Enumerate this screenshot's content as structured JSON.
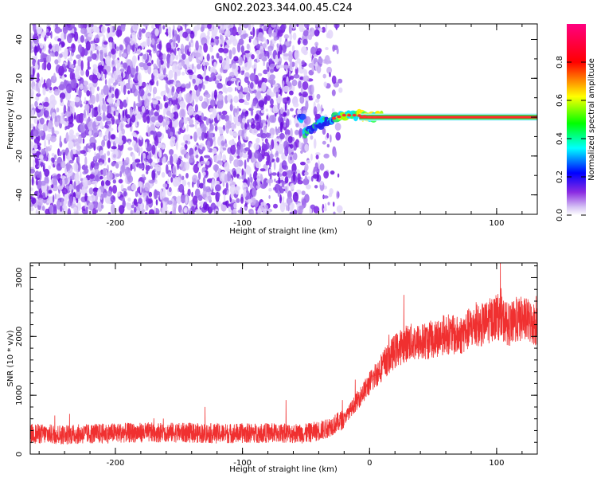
{
  "title": "GN02.2023.344.00.45.C24",
  "chart_data": [
    {
      "type": "heatmap",
      "xlabel": "Height of straight line (km)",
      "ylabel": "Frequency (Hz)",
      "xlim": [
        -267,
        132
      ],
      "ylim": [
        -50,
        48
      ],
      "xticks": [
        -200,
        -100,
        0,
        100
      ],
      "yticks": [
        -40,
        -20,
        0,
        20,
        40
      ],
      "grid": false,
      "description_values": {
        "noise_region_x": [
          -267,
          -30
        ],
        "signal_track": [
          {
            "x": -52,
            "y": -9
          },
          {
            "x": -45,
            "y": -6
          },
          {
            "x": -38,
            "y": -3
          },
          {
            "x": -30,
            "y": -1
          },
          {
            "x": -20,
            "y": 1
          },
          {
            "x": -10,
            "y": 1
          },
          {
            "x": 0,
            "y": 0
          },
          {
            "x": 132,
            "y": 0
          }
        ]
      },
      "colorbar": {
        "label": "Normalized spectral amplitude",
        "range": [
          0,
          1
        ],
        "ticks": [
          0.0,
          0.2,
          0.4,
          0.6,
          0.8
        ],
        "tick_labels": [
          "0.0",
          "0.2",
          "0.4",
          "0.6",
          "0.8"
        ],
        "colors": [
          "#ffffff",
          "#8a2be2",
          "#0000ff",
          "#00ffff",
          "#00ff00",
          "#ffff00",
          "#ff0000",
          "#ff0080"
        ]
      }
    },
    {
      "type": "line",
      "xlabel": "Height of straight line (km)",
      "ylabel": "SNR (10 * v/v)",
      "xlim": [
        -267,
        132
      ],
      "ylim": [
        0,
        3250
      ],
      "xticks": [
        -200,
        -100,
        0,
        100
      ],
      "yticks": [
        0,
        1000,
        2000,
        3000
      ],
      "grid": false,
      "color": "#f03030",
      "series": [
        {
          "x": [
            -267,
            -240,
            -200,
            -160,
            -120,
            -80,
            -50,
            -35,
            -20,
            -10,
            0,
            10,
            20,
            30,
            40,
            50,
            60,
            70,
            80,
            90,
            100,
            110,
            120,
            132
          ],
          "values": [
            350,
            330,
            360,
            370,
            350,
            360,
            350,
            420,
            600,
            900,
            1200,
            1500,
            1750,
            1900,
            1900,
            1950,
            2050,
            2000,
            2150,
            2200,
            2350,
            2200,
            2300,
            2200
          ]
        }
      ]
    }
  ]
}
